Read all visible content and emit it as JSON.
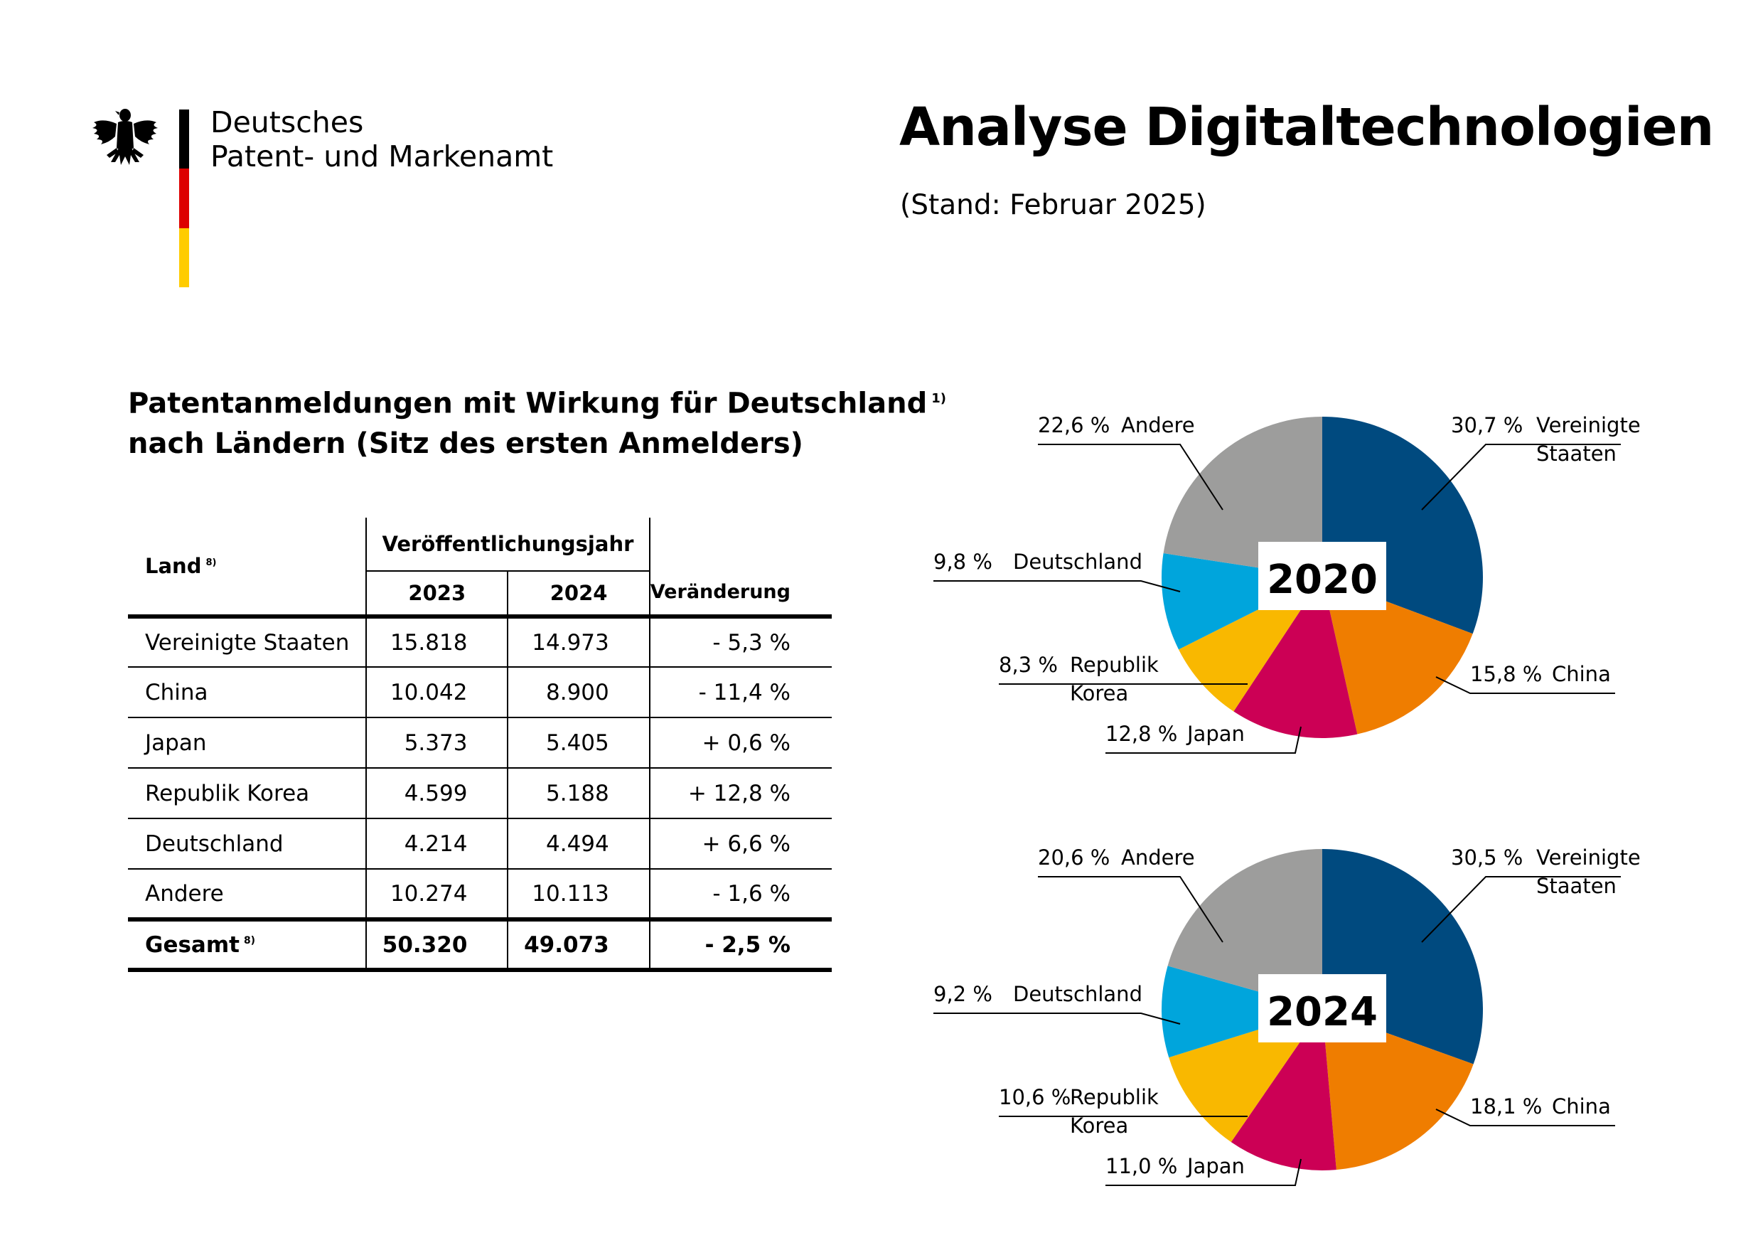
{
  "logo": {
    "line1": "Deutsches",
    "line2": "Patent- und Markenamt",
    "flag_colors": [
      "#000000",
      "#dd0000",
      "#ffcc00"
    ]
  },
  "header": {
    "title": "Analyse Digitaltechnologien",
    "subtitle": "(Stand: Februar 2025)"
  },
  "section": {
    "title_line1": "Patentanmeldungen mit Wirkung für Deutschland",
    "title_sup": "1)",
    "title_line2": "nach Ländern (Sitz des ersten Anmelders)"
  },
  "table": {
    "col_land": "Land",
    "col_land_sup": "8)",
    "col_group": "Veröffentlichungsjahr",
    "col_year1": "2023",
    "col_year2": "2024",
    "col_change": "Veränderung",
    "rows": [
      {
        "land": "Vereinigte Staaten",
        "y2023": "15.818",
        "y2024": "14.973",
        "change": "- 5,3 %"
      },
      {
        "land": "China",
        "y2023": "10.042",
        "y2024": "8.900",
        "change": "- 11,4 %"
      },
      {
        "land": "Japan",
        "y2023": "5.373",
        "y2024": "5.405",
        "change": "+ 0,6 %"
      },
      {
        "land": "Republik Korea",
        "y2023": "4.599",
        "y2024": "5.188",
        "change": "+ 12,8 %"
      },
      {
        "land": "Deutschland",
        "y2023": "4.214",
        "y2024": "4.494",
        "change": "+ 6,6 %"
      },
      {
        "land": "Andere",
        "y2023": "10.274",
        "y2024": "10.113",
        "change": "- 1,6 %"
      }
    ],
    "total": {
      "land": "Gesamt",
      "sup": "8)",
      "y2023": "50.320",
      "y2024": "49.073",
      "change": "- 2,5 %"
    }
  },
  "chart_data": [
    {
      "type": "pie",
      "title": "2020",
      "slices": [
        {
          "label": "Vereinigte Staaten",
          "label_lines": [
            "Vereinigte",
            "Staaten"
          ],
          "value": 30.7,
          "pct_text": "30,7 %",
          "color": "#004a7f"
        },
        {
          "label": "China",
          "label_lines": [
            "China"
          ],
          "value": 15.8,
          "pct_text": "15,8 %",
          "color": "#ef7d00"
        },
        {
          "label": "Japan",
          "label_lines": [
            "Japan"
          ],
          "value": 12.8,
          "pct_text": "12,8 %",
          "color": "#cc0055"
        },
        {
          "label": "Republik Korea",
          "label_lines": [
            "Republik",
            "Korea"
          ],
          "value": 8.3,
          "pct_text": "8,3 %",
          "color": "#f9b800"
        },
        {
          "label": "Deutschland",
          "label_lines": [
            "Deutschland"
          ],
          "value": 9.8,
          "pct_text": "9,8 %",
          "color": "#00a5dc"
        },
        {
          "label": "Andere",
          "label_lines": [
            "Andere"
          ],
          "value": 22.6,
          "pct_text": "22,6 %",
          "color": "#9d9d9c"
        }
      ]
    },
    {
      "type": "pie",
      "title": "2024",
      "slices": [
        {
          "label": "Vereinigte Staaten",
          "label_lines": [
            "Vereinigte",
            "Staaten"
          ],
          "value": 30.5,
          "pct_text": "30,5 %",
          "color": "#004a7f"
        },
        {
          "label": "China",
          "label_lines": [
            "China"
          ],
          "value": 18.1,
          "pct_text": "18,1 %",
          "color": "#ef7d00"
        },
        {
          "label": "Japan",
          "label_lines": [
            "Japan"
          ],
          "value": 11.0,
          "pct_text": "11,0 %",
          "color": "#cc0055"
        },
        {
          "label": "Republik Korea",
          "label_lines": [
            "Republik",
            "Korea"
          ],
          "value": 10.6,
          "pct_text": "10,6 %",
          "color": "#f9b800"
        },
        {
          "label": "Deutschland",
          "label_lines": [
            "Deutschland"
          ],
          "value": 9.2,
          "pct_text": "9,2 %",
          "color": "#00a5dc"
        },
        {
          "label": "Andere",
          "label_lines": [
            "Andere"
          ],
          "value": 20.6,
          "pct_text": "20,6 %",
          "color": "#9d9d9c"
        }
      ]
    }
  ]
}
